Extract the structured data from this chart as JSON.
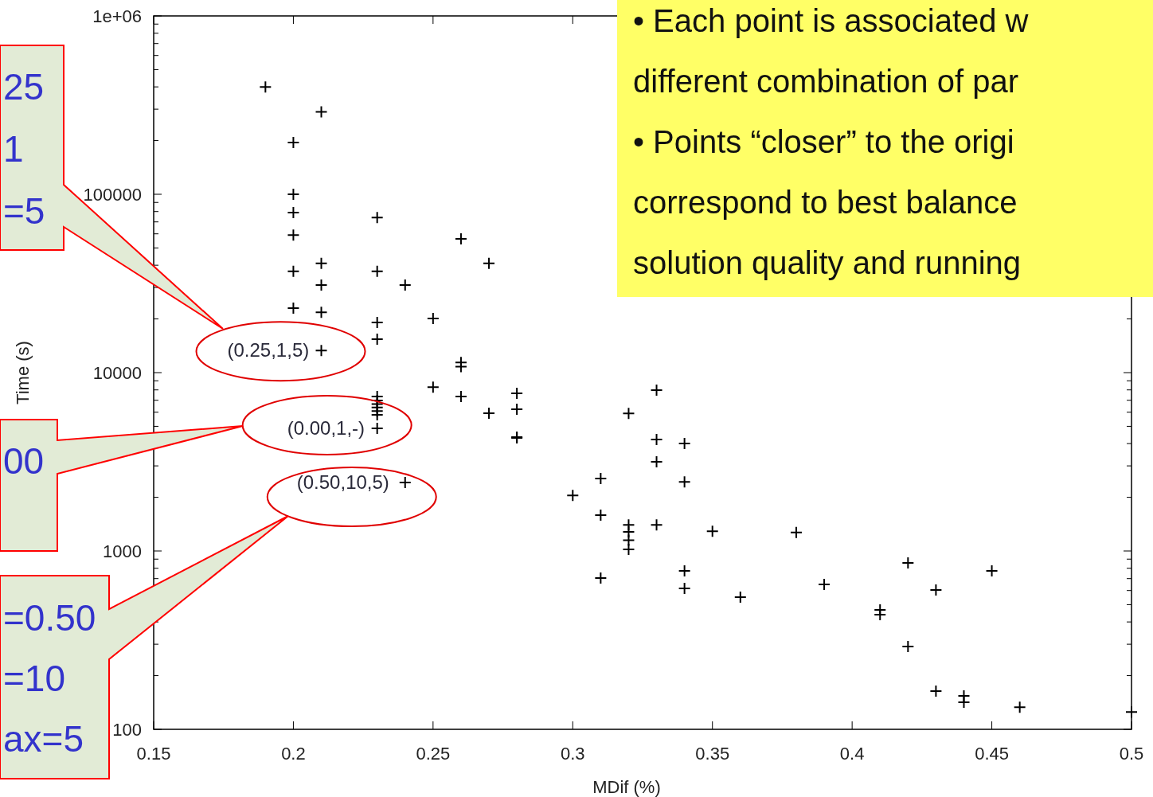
{
  "chart_data": {
    "type": "scatter",
    "xlabel": "MDif (%)",
    "ylabel": "Time (s)",
    "log": "y",
    "marker": "cross",
    "grid": false,
    "xlim": [
      0.15,
      0.5
    ],
    "ylim": [
      100,
      1000000
    ],
    "xticks": [
      0.15,
      0.2,
      0.25,
      0.3,
      0.35,
      0.4,
      0.45,
      0.5
    ],
    "yticks": [
      100,
      {
        "value": 200,
        "label": null
      },
      {
        "value": 300,
        "label": null
      },
      {
        "value": 400,
        "label": null
      },
      {
        "value": 500,
        "label": null
      },
      {
        "value": 600,
        "label": null
      },
      {
        "value": 700,
        "label": null
      },
      {
        "value": 800,
        "label": null
      },
      {
        "value": 900,
        "label": null
      },
      1000,
      {
        "value": 2000,
        "label": null
      },
      {
        "value": 3000,
        "label": null
      },
      {
        "value": 4000,
        "label": null
      },
      {
        "value": 5000,
        "label": null
      },
      {
        "value": 6000,
        "label": null
      },
      {
        "value": 7000,
        "label": null
      },
      {
        "value": 8000,
        "label": null
      },
      {
        "value": 9000,
        "label": null
      },
      10000,
      {
        "value": 20000,
        "label": null
      },
      {
        "value": 30000,
        "label": null
      },
      {
        "value": 40000,
        "label": null
      },
      {
        "value": 50000,
        "label": null
      },
      {
        "value": 60000,
        "label": null
      },
      {
        "value": 70000,
        "label": null
      },
      {
        "value": 80000,
        "label": null
      },
      {
        "value": 90000,
        "label": null
      },
      100000,
      {
        "value": 200000,
        "label": null
      },
      {
        "value": 300000,
        "label": null
      },
      {
        "value": 400000,
        "label": null
      },
      {
        "value": 500000,
        "label": null
      },
      {
        "value": 600000,
        "label": null
      },
      {
        "value": 700000,
        "label": null
      },
      {
        "value": 800000,
        "label": null
      },
      {
        "value": 900000,
        "label": null
      },
      {
        "value": 1000000,
        "label": "1e+06"
      }
    ],
    "series": [
      {
        "color": "#000000",
        "x": [
          0.19,
          0.21,
          0.2,
          0.2,
          0.2,
          0.2,
          0.2,
          0.2,
          0.21,
          0.21,
          0.21,
          0.21,
          0.23,
          0.23,
          0.23,
          0.23,
          0.23,
          0.23,
          0.23,
          0.23,
          0.23,
          0.23,
          0.23,
          0.24,
          0.25,
          0.25,
          0.26,
          0.26,
          0.26,
          0.26,
          0.27,
          0.27,
          0.28,
          0.28,
          0.28,
          0.28,
          0.24,
          0.3,
          0.31,
          0.31,
          0.31,
          0.32,
          0.32,
          0.32,
          0.32,
          0.32,
          0.33,
          0.33,
          0.33,
          0.33,
          0.34,
          0.34,
          0.34,
          0.34,
          0.35,
          0.36,
          0.38,
          0.39,
          0.41,
          0.41,
          0.42,
          0.42,
          0.43,
          0.43,
          0.44,
          0.44,
          0.45,
          0.46,
          0.5
        ],
        "values": [
          400000,
          290000,
          195000,
          100000,
          79000,
          59000,
          37000,
          23000,
          41000,
          31000,
          21800,
          13300,
          74000,
          37000,
          19100,
          15400,
          7350,
          6980,
          6660,
          6380,
          6090,
          5800,
          4870,
          31000,
          20100,
          8300,
          56200,
          11400,
          10800,
          7340,
          41000,
          5920,
          7650,
          6230,
          4350,
          4300,
          2420,
          2050,
          2550,
          1590,
          705,
          5900,
          1400,
          1280,
          1150,
          1020,
          7980,
          4220,
          3160,
          1400,
          4010,
          2440,
          773,
          617,
          1290,
          551,
          1270,
          649,
          467,
          439,
          857,
          291,
          604,
          164,
          154,
          142,
          773,
          133,
          125
        ]
      }
    ],
    "annotations": [
      {
        "text": "(0.25,1,5)",
        "x": 0.21,
        "y": 13300
      },
      {
        "text": "(0.00,1,-)",
        "x": 0.23,
        "y": 4870
      },
      {
        "text": "(0.50,10,5)",
        "x": 0.24,
        "y": 2420
      },
      "25\n1\n=5",
      "00",
      "=0.50\n=10\nax=5",
      "• Each point is associated w\ndifferent combination of par\n• Points “closer” to the origi\ncorrespond to best balance\nsolution quality and running"
    ]
  }
}
